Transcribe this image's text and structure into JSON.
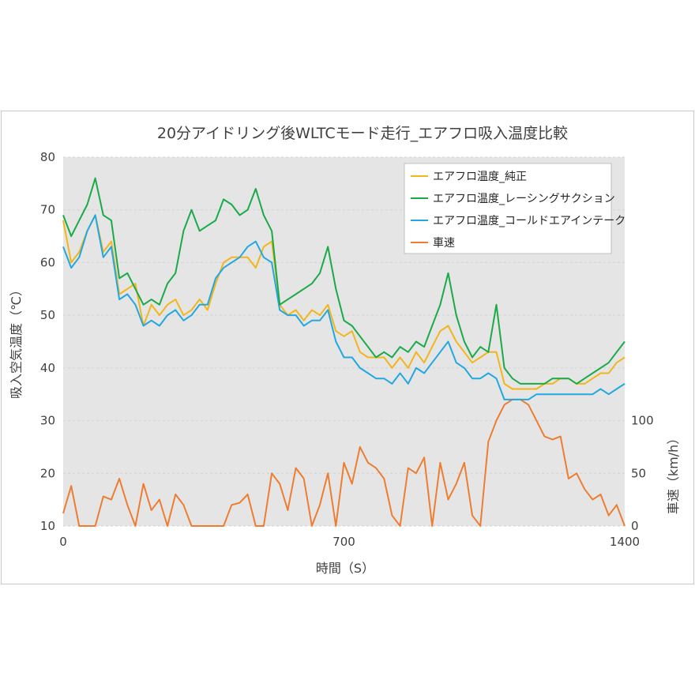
{
  "chart_data": {
    "type": "line",
    "title": "20分アイドリング後WLTCモード走行_エアフロ吸入温度比較",
    "xlabel": "時間（S）",
    "ylabel": "吸入空気温度（℃）",
    "y2label": "車速（km/h）",
    "xlim": [
      0,
      1400
    ],
    "ylim": [
      10,
      80
    ],
    "y2lim": [
      0,
      350
    ],
    "x_ticks": [
      "0",
      "700",
      "1400"
    ],
    "y_ticks": [
      "10",
      "20",
      "30",
      "40",
      "50",
      "60",
      "70",
      "80"
    ],
    "y2_ticks": [
      "0",
      "50",
      "100"
    ],
    "grid": "horizontal",
    "legend_position": "top-right",
    "series": [
      {
        "name": "エアフロ温度_純正",
        "color": "#f2b51c",
        "axis": "left",
        "x": [
          0,
          20,
          40,
          60,
          80,
          100,
          120,
          140,
          160,
          180,
          200,
          220,
          240,
          260,
          280,
          300,
          320,
          340,
          360,
          380,
          400,
          420,
          440,
          460,
          480,
          500,
          520,
          540,
          560,
          580,
          600,
          620,
          640,
          660,
          680,
          700,
          720,
          740,
          760,
          780,
          800,
          820,
          840,
          860,
          880,
          900,
          920,
          940,
          960,
          980,
          1000,
          1020,
          1040,
          1060,
          1080,
          1100,
          1120,
          1140,
          1160,
          1180,
          1200,
          1220,
          1240,
          1260,
          1280,
          1300,
          1320,
          1340,
          1360,
          1380,
          1400
        ],
        "values": [
          68,
          60,
          62,
          66,
          69,
          62,
          64,
          54,
          55,
          56,
          48,
          52,
          50,
          52,
          53,
          50,
          51,
          53,
          51,
          56,
          60,
          61,
          61,
          61,
          59,
          63,
          64,
          52,
          50,
          51,
          49,
          51,
          50,
          52,
          47,
          46,
          47,
          43,
          42,
          42,
          42,
          40,
          42,
          40,
          43,
          41,
          44,
          47,
          48,
          45,
          43,
          41,
          42,
          43,
          43,
          37,
          36,
          36,
          36,
          36,
          37,
          37,
          38,
          38,
          37,
          37,
          38,
          39,
          39,
          41,
          42
        ]
      },
      {
        "name": "エアフロ温度_レーシングサクション",
        "color": "#1aaa48",
        "axis": "left",
        "x": [
          0,
          20,
          40,
          60,
          80,
          100,
          120,
          140,
          160,
          180,
          200,
          220,
          240,
          260,
          280,
          300,
          320,
          340,
          360,
          380,
          400,
          420,
          440,
          460,
          480,
          500,
          520,
          540,
          560,
          580,
          600,
          620,
          640,
          660,
          680,
          700,
          720,
          740,
          760,
          780,
          800,
          820,
          840,
          860,
          880,
          900,
          920,
          940,
          960,
          980,
          1000,
          1020,
          1040,
          1060,
          1080,
          1100,
          1120,
          1140,
          1160,
          1180,
          1200,
          1220,
          1240,
          1260,
          1280,
          1300,
          1320,
          1340,
          1360,
          1380,
          1400
        ],
        "values": [
          69,
          65,
          68,
          71,
          76,
          69,
          68,
          57,
          58,
          55,
          52,
          53,
          52,
          56,
          58,
          66,
          70,
          66,
          67,
          68,
          72,
          71,
          69,
          70,
          74,
          69,
          66,
          52,
          53,
          54,
          55,
          56,
          58,
          63,
          55,
          49,
          48,
          46,
          44,
          42,
          43,
          42,
          44,
          43,
          45,
          44,
          48,
          52,
          58,
          50,
          45,
          42,
          44,
          43,
          52,
          40,
          38,
          37,
          37,
          37,
          37,
          38,
          38,
          38,
          37,
          38,
          39,
          40,
          41,
          43,
          45
        ]
      },
      {
        "name": "エアフロ温度_コールドエアインテーク",
        "color": "#22a8e0",
        "axis": "left",
        "x": [
          0,
          20,
          40,
          60,
          80,
          100,
          120,
          140,
          160,
          180,
          200,
          220,
          240,
          260,
          280,
          300,
          320,
          340,
          360,
          380,
          400,
          420,
          440,
          460,
          480,
          500,
          520,
          540,
          560,
          580,
          600,
          620,
          640,
          660,
          680,
          700,
          720,
          740,
          760,
          780,
          800,
          820,
          840,
          860,
          880,
          900,
          920,
          940,
          960,
          980,
          1000,
          1020,
          1040,
          1060,
          1080,
          1100,
          1120,
          1140,
          1160,
          1180,
          1200,
          1220,
          1240,
          1260,
          1280,
          1300,
          1320,
          1340,
          1360,
          1380,
          1400
        ],
        "values": [
          63,
          59,
          61,
          66,
          69,
          61,
          63,
          53,
          54,
          52,
          48,
          49,
          48,
          50,
          51,
          49,
          50,
          52,
          52,
          57,
          59,
          60,
          61,
          63,
          64,
          61,
          60,
          51,
          50,
          50,
          48,
          49,
          49,
          51,
          45,
          42,
          42,
          40,
          39,
          38,
          38,
          37,
          39,
          37,
          40,
          39,
          41,
          43,
          45,
          41,
          40,
          38,
          38,
          39,
          38,
          34,
          34,
          34,
          34,
          35,
          35,
          35,
          35,
          35,
          35,
          35,
          35,
          36,
          35,
          36,
          37
        ]
      },
      {
        "name": "車速",
        "color": "#ed7d31",
        "axis": "right",
        "x": [
          0,
          20,
          40,
          60,
          80,
          100,
          120,
          140,
          160,
          180,
          200,
          220,
          240,
          260,
          280,
          300,
          320,
          340,
          360,
          380,
          400,
          420,
          440,
          460,
          480,
          500,
          520,
          540,
          560,
          580,
          600,
          620,
          640,
          660,
          680,
          700,
          720,
          740,
          760,
          780,
          800,
          820,
          840,
          860,
          880,
          900,
          920,
          940,
          960,
          980,
          1000,
          1020,
          1040,
          1060,
          1080,
          1100,
          1120,
          1140,
          1160,
          1180,
          1200,
          1220,
          1240,
          1260,
          1280,
          1300,
          1320,
          1340,
          1360,
          1380,
          1400
        ],
        "values": [
          12,
          38,
          0,
          0,
          0,
          28,
          25,
          45,
          20,
          0,
          40,
          15,
          25,
          0,
          30,
          20,
          0,
          0,
          0,
          0,
          0,
          20,
          22,
          30,
          0,
          0,
          50,
          40,
          15,
          55,
          45,
          0,
          20,
          50,
          0,
          60,
          40,
          75,
          60,
          55,
          45,
          10,
          0,
          55,
          50,
          65,
          0,
          60,
          25,
          40,
          60,
          10,
          0,
          80,
          100,
          115,
          120,
          120,
          115,
          100,
          85,
          82,
          85,
          45,
          50,
          35,
          25,
          30,
          10,
          20,
          0
        ]
      }
    ]
  }
}
